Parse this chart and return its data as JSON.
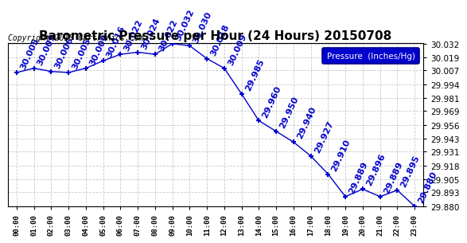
{
  "title": "Barometric Pressure per Hour (24 Hours) 20150708",
  "copyright": "Copyright 2015 Cartronics.com",
  "legend_label": "Pressure  (Inches/Hg)",
  "hours": [
    0,
    1,
    2,
    3,
    4,
    5,
    6,
    7,
    8,
    9,
    10,
    11,
    12,
    13,
    14,
    15,
    16,
    17,
    18,
    19,
    20,
    21,
    22,
    23
  ],
  "hour_labels": [
    "00:00",
    "01:00",
    "02:00",
    "03:00",
    "04:00",
    "05:00",
    "06:00",
    "07:00",
    "08:00",
    "09:00",
    "10:00",
    "11:00",
    "12:00",
    "13:00",
    "14:00",
    "15:00",
    "16:00",
    "17:00",
    "18:00",
    "19:00",
    "20:00",
    "21:00",
    "22:00",
    "23:00"
  ],
  "values": [
    30.005,
    30.009,
    30.006,
    30.005,
    30.009,
    30.016,
    30.022,
    30.024,
    30.022,
    30.032,
    30.03,
    30.018,
    30.009,
    29.985,
    29.96,
    29.95,
    29.94,
    29.927,
    29.91,
    29.889,
    29.896,
    29.889,
    29.895,
    29.88
  ],
  "annotations": [
    "30.005",
    "30.009",
    "30.006",
    "30.005",
    "30.009",
    "30.016",
    "30.022",
    "30.024",
    "30.022",
    "30.032",
    "30.030",
    "30.018",
    "30.009",
    "29.985",
    "29.960",
    "29.950",
    "29.940",
    "29.927",
    "29.910",
    "29.889",
    "29.896",
    "29.889",
    "29.895",
    "29.880"
  ],
  "line_color": "#0000cc",
  "marker_color": "#0000cc",
  "background_color": "#ffffff",
  "grid_color": "#bbbbbb",
  "legend_bg": "#0000cc",
  "legend_text_color": "#ffffff",
  "ylim_min": 29.88,
  "ylim_max": 30.032,
  "ytick_values": [
    29.88,
    29.893,
    29.905,
    29.918,
    29.931,
    29.943,
    29.956,
    29.969,
    29.981,
    29.994,
    30.007,
    30.019,
    30.032
  ],
  "annotation_fontsize": 8,
  "annotation_rotation": 65,
  "title_fontsize": 11,
  "copyright_fontsize": 7
}
